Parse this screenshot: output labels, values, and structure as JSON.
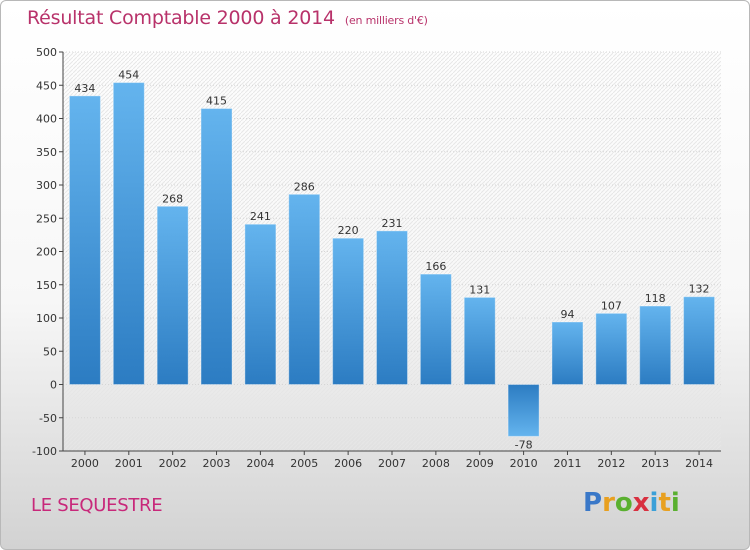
{
  "header": {
    "title": "Résultat Comptable 2000 à 2014",
    "subtitle": "(en milliers d'€)"
  },
  "footer": {
    "commune": "LE SEQUESTRE",
    "logo": [
      "P",
      "r",
      "o",
      "x",
      "i",
      "t",
      "i"
    ]
  },
  "colors": {
    "bar_light": "#5fb0ec",
    "bar_dark": "#2e7ec4",
    "title": "#b8326a"
  },
  "chart_data": {
    "type": "bar",
    "title": "Résultat Comptable 2000 à 2014",
    "subtitle": "(en milliers d'€)",
    "xlabel": "",
    "ylabel": "",
    "categories": [
      "2000",
      "2001",
      "2002",
      "2003",
      "2004",
      "2005",
      "2006",
      "2007",
      "2008",
      "2009",
      "2010",
      "2011",
      "2012",
      "2013",
      "2014"
    ],
    "values": [
      434,
      454,
      268,
      415,
      241,
      286,
      220,
      231,
      166,
      131,
      -78,
      94,
      107,
      118,
      132
    ],
    "ylim": [
      -100,
      500
    ],
    "yticks": [
      -100,
      -50,
      0,
      50,
      100,
      150,
      200,
      250,
      300,
      350,
      400,
      450,
      500
    ],
    "grid": true
  }
}
